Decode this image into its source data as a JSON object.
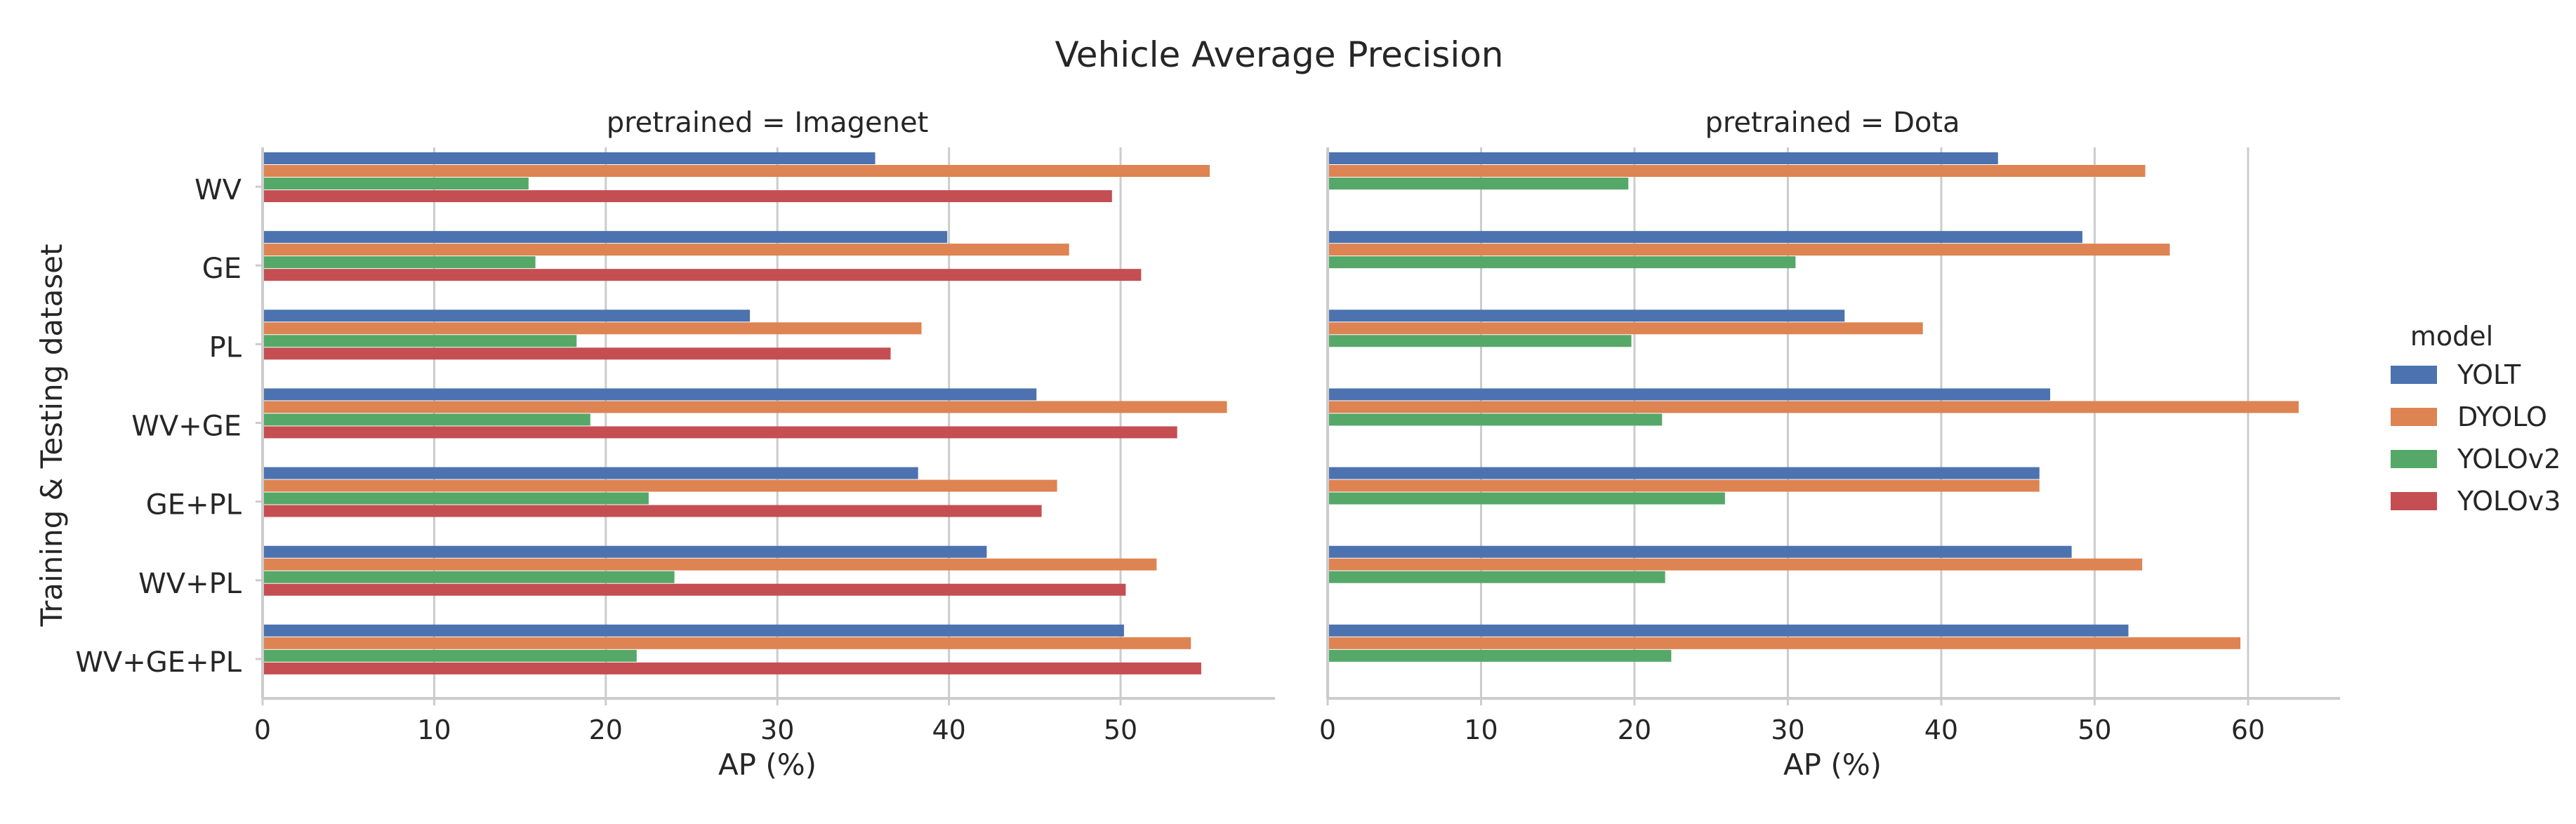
{
  "chart_data": {
    "type": "bar",
    "orientation": "horizontal",
    "title": "Vehicle Average Precision",
    "ylabel": "Training & Testing dataset",
    "categories": [
      "WV",
      "GE",
      "PL",
      "WV+GE",
      "GE+PL",
      "WV+PL",
      "WV+GE+PL"
    ],
    "legend": {
      "title": "model",
      "placement": "right",
      "entries": [
        {
          "name": "YOLT",
          "color": "#4c72b0"
        },
        {
          "name": "DYOLO",
          "color": "#dd8452"
        },
        {
          "name": "YOLOv2",
          "color": "#55a868"
        },
        {
          "name": "YOLOv3",
          "color": "#c44e52"
        }
      ]
    },
    "grid": true,
    "panels": [
      {
        "title": "pretrained = Imagenet",
        "xlabel": "AP (%)",
        "xlim": [
          0,
          59
        ],
        "xticks": [
          0,
          10,
          20,
          30,
          40,
          50
        ],
        "series": [
          {
            "name": "YOLT",
            "values": [
              35.7,
              39.9,
              28.4,
              45.1,
              38.2,
              42.2,
              50.2
            ]
          },
          {
            "name": "DYOLO",
            "values": [
              55.2,
              47.0,
              38.4,
              56.2,
              46.3,
              52.1,
              54.1
            ]
          },
          {
            "name": "YOLOv2",
            "values": [
              15.5,
              15.9,
              18.3,
              19.1,
              22.5,
              24.0,
              21.8
            ]
          },
          {
            "name": "YOLOv3",
            "values": [
              49.5,
              51.2,
              36.6,
              53.3,
              45.4,
              50.3,
              54.7
            ]
          }
        ]
      },
      {
        "title": "pretrained = Dota",
        "xlabel": "AP (%)",
        "xlim": [
          0,
          66
        ],
        "xticks": [
          0,
          10,
          20,
          30,
          40,
          50,
          60
        ],
        "series": [
          {
            "name": "YOLT",
            "values": [
              43.7,
              49.2,
              33.7,
              47.1,
              46.4,
              48.5,
              52.2
            ]
          },
          {
            "name": "DYOLO",
            "values": [
              53.3,
              54.9,
              38.8,
              63.3,
              46.4,
              53.1,
              59.5
            ]
          },
          {
            "name": "YOLOv2",
            "values": [
              19.6,
              30.5,
              19.8,
              21.8,
              25.9,
              22.0,
              22.4
            ]
          },
          {
            "name": "YOLOv3",
            "values": [
              0,
              0,
              0,
              0,
              0,
              0,
              0
            ]
          }
        ]
      }
    ]
  }
}
